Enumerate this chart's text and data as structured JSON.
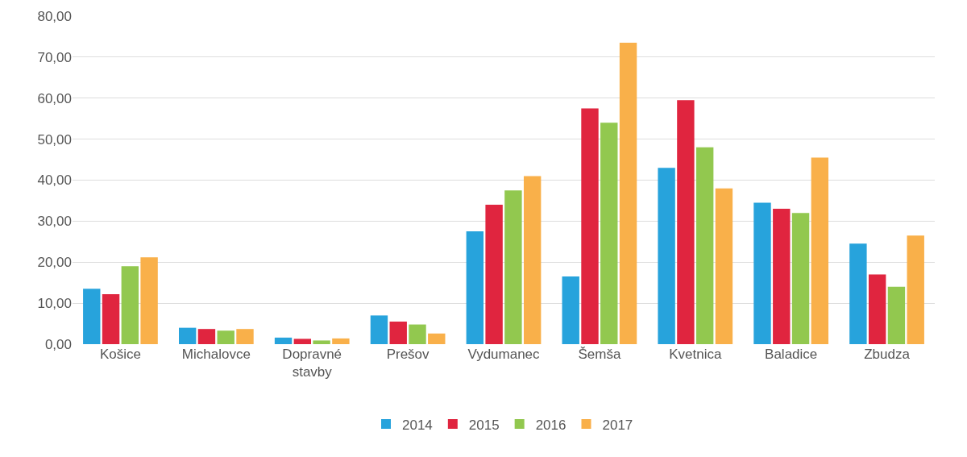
{
  "chart_data": {
    "type": "bar",
    "categories": [
      "Košice",
      "Michalovce",
      "Dopravné stavby",
      "Prešov",
      "Vydumanec",
      "Šemša",
      "Kvetnica",
      "Baladice",
      "Zbudza"
    ],
    "series": [
      {
        "name": "2014",
        "color": "#27a3dc",
        "values": [
          13.5,
          4,
          1.6,
          7,
          27.5,
          16.5,
          43,
          34.5,
          24.5
        ]
      },
      {
        "name": "2015",
        "color": "#e0253f",
        "values": [
          12.2,
          3.7,
          1.3,
          5.5,
          34,
          57.5,
          59.5,
          33,
          17
        ]
      },
      {
        "name": "2016",
        "color": "#92c84f",
        "values": [
          19,
          3.3,
          0.9,
          4.8,
          37.5,
          54,
          48,
          32,
          14
        ]
      },
      {
        "name": "2017",
        "color": "#f9b04a",
        "values": [
          21.2,
          3.7,
          1.4,
          2.6,
          41,
          73.5,
          38,
          45.5,
          26.5
        ]
      }
    ],
    "ylim": [
      0,
      80
    ],
    "yticks": [
      {
        "value": 0,
        "label": "0,00"
      },
      {
        "value": 10,
        "label": "10,00"
      },
      {
        "value": 20,
        "label": "20,00"
      },
      {
        "value": 30,
        "label": "30,00"
      },
      {
        "value": 40,
        "label": "40,00"
      },
      {
        "value": 50,
        "label": "50,00"
      },
      {
        "value": 60,
        "label": "60,00"
      },
      {
        "value": 70,
        "label": "70,00"
      },
      {
        "value": 80,
        "label": "80,00"
      }
    ],
    "grid": "y",
    "legend": "bottom"
  }
}
